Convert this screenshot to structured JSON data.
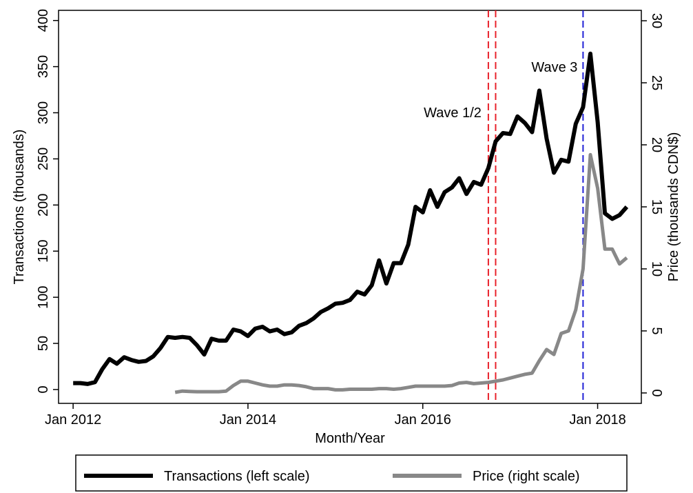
{
  "chart_data": {
    "type": "line",
    "x_label": "Month/Year",
    "y_label": "Transactions (thousands)",
    "y2_label": "Price (thousands CDN$)",
    "xlim": [
      "2011-11",
      "2018-07"
    ],
    "xticks": [
      {
        "value": "2012-01",
        "label": "Jan 2012"
      },
      {
        "value": "2014-01",
        "label": "Jan 2014"
      },
      {
        "value": "2016-01",
        "label": "Jan 2016"
      },
      {
        "value": "2018-01",
        "label": "Jan 2018"
      }
    ],
    "ylim": [
      -15,
      411
    ],
    "yticks": [
      0,
      50,
      100,
      150,
      200,
      250,
      300,
      350,
      400
    ],
    "y2lim": [
      -0.84,
      30.84
    ],
    "y2ticks": [
      0,
      5,
      10,
      15,
      20,
      25,
      30
    ],
    "x": [
      "2012-01",
      "2012-02",
      "2012-03",
      "2012-04",
      "2012-05",
      "2012-06",
      "2012-07",
      "2012-08",
      "2012-09",
      "2012-10",
      "2012-11",
      "2012-12",
      "2013-01",
      "2013-02",
      "2013-03",
      "2013-04",
      "2013-05",
      "2013-06",
      "2013-07",
      "2013-08",
      "2013-09",
      "2013-10",
      "2013-11",
      "2013-12",
      "2014-01",
      "2014-02",
      "2014-03",
      "2014-04",
      "2014-05",
      "2014-06",
      "2014-07",
      "2014-08",
      "2014-09",
      "2014-10",
      "2014-11",
      "2014-12",
      "2015-01",
      "2015-02",
      "2015-03",
      "2015-04",
      "2015-05",
      "2015-06",
      "2015-07",
      "2015-08",
      "2015-09",
      "2015-10",
      "2015-11",
      "2015-12",
      "2016-01",
      "2016-02",
      "2016-03",
      "2016-04",
      "2016-05",
      "2016-06",
      "2016-07",
      "2016-08",
      "2016-09",
      "2016-10",
      "2016-11",
      "2016-12",
      "2017-01",
      "2017-02",
      "2017-03",
      "2017-04",
      "2017-05",
      "2017-06",
      "2017-07",
      "2017-08",
      "2017-09",
      "2017-10",
      "2017-11",
      "2017-12",
      "2018-01",
      "2018-02",
      "2018-03",
      "2018-04",
      "2018-05"
    ],
    "series": [
      {
        "name": "Transactions (left scale)",
        "color": "#000000",
        "axis": "y",
        "values": [
          7,
          7,
          6,
          8,
          22,
          33,
          28,
          35,
          32,
          30,
          31,
          36,
          45,
          57,
          56,
          57,
          56,
          48,
          38,
          55,
          53,
          53,
          65,
          63,
          58,
          66,
          68,
          63,
          65,
          60,
          62,
          69,
          72,
          77,
          84,
          88,
          93,
          94,
          97,
          106,
          103,
          113,
          140,
          115,
          137,
          137,
          157,
          198,
          192,
          216,
          198,
          214,
          219,
          229,
          212,
          225,
          222,
          240,
          269,
          278,
          277,
          296,
          289,
          279,
          324,
          272,
          235,
          249,
          247,
          288,
          306,
          364,
          290,
          191,
          185,
          189,
          198
        ]
      },
      {
        "name": "Price (right scale)",
        "color": "#888888",
        "axis": "y2",
        "values": [
          null,
          null,
          null,
          null,
          null,
          null,
          null,
          null,
          null,
          null,
          null,
          null,
          null,
          null,
          0.05,
          0.15,
          0.12,
          0.1,
          0.1,
          0.1,
          0.1,
          0.15,
          0.6,
          0.95,
          0.95,
          0.8,
          0.65,
          0.55,
          0.55,
          0.65,
          0.65,
          0.6,
          0.5,
          0.35,
          0.35,
          0.35,
          0.25,
          0.25,
          0.3,
          0.3,
          0.3,
          0.3,
          0.35,
          0.35,
          0.3,
          0.35,
          0.45,
          0.55,
          0.55,
          0.55,
          0.55,
          0.55,
          0.6,
          0.8,
          0.85,
          0.75,
          0.8,
          0.85,
          0.95,
          1.05,
          1.2,
          1.35,
          1.5,
          1.6,
          2.6,
          3.5,
          3.1,
          4.8,
          5.0,
          6.7,
          10.0,
          19.2,
          16.5,
          11.6,
          11.6,
          10.4,
          10.9
        ]
      }
    ],
    "vlines": [
      {
        "x": "2016-10",
        "color": "#e8202a"
      },
      {
        "x": "2016-11",
        "color": "#e8202a"
      },
      {
        "x": "2017-11",
        "color": "#1f1fd6"
      }
    ],
    "annotations": [
      {
        "text": "Wave 1/2",
        "color": "#e8202a"
      },
      {
        "text": "Wave 3",
        "color": "#1f1fd6"
      }
    ],
    "legend": "bottom"
  }
}
